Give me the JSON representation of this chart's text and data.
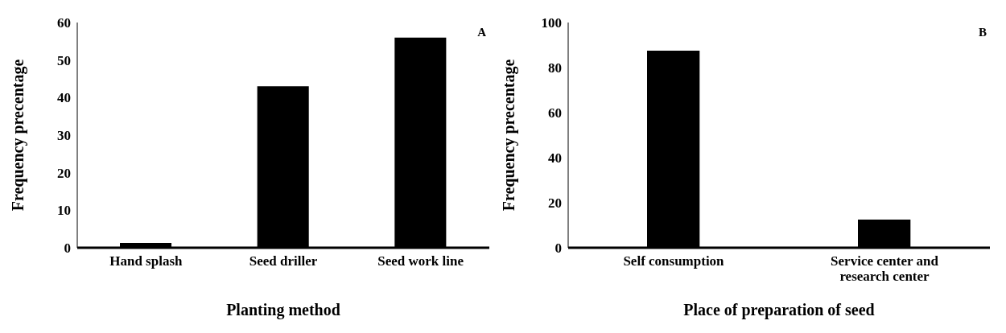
{
  "chart_data": [
    {
      "type": "bar",
      "xlabel": "Planting method",
      "ylabel": "Frequency precentage",
      "categories": [
        "Hand splash",
        "Seed driller",
        "Seed work line"
      ],
      "values": [
        1.3,
        43,
        56
      ],
      "color": "#000000",
      "ylim": [
        0,
        60
      ],
      "yticks": [
        0,
        10,
        20,
        30,
        40,
        50,
        60
      ],
      "grid": false,
      "annotations": [
        "A"
      ]
    },
    {
      "type": "bar",
      "xlabel": "Place of preparation of seed",
      "ylabel": "Frequency precentage",
      "categories": [
        "Self consumption",
        "Service center and research center"
      ],
      "values": [
        87.5,
        12.5
      ],
      "color": "#000000",
      "ylim": [
        0,
        100
      ],
      "yticks": [
        0,
        20,
        40,
        60,
        80,
        100
      ],
      "grid": false,
      "annotations": [
        "B"
      ]
    }
  ]
}
